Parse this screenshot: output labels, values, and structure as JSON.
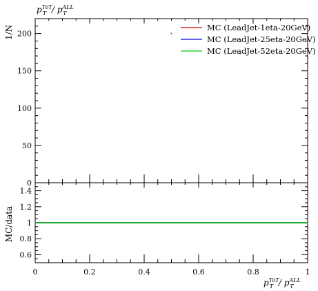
{
  "chart_data": [
    {
      "type": "scatter",
      "title": "p_T^ToT / p_T^ALL",
      "xlabel": "",
      "ylabel": "1/N",
      "xlim": [
        0,
        1
      ],
      "ylim": [
        0,
        220
      ],
      "yticks": [
        "0",
        "50",
        "100",
        "150",
        "200"
      ],
      "legend_position": "top-right",
      "series": [
        {
          "name": "MC (LeadJet-1eta-20GeV)",
          "color": "#cc0000",
          "x": [
            0.5
          ],
          "y": [
            200
          ]
        },
        {
          "name": "MC (LeadJet-25eta-20GeV)",
          "color": "#0000ee",
          "x": [
            0.5
          ],
          "y": [
            200
          ]
        },
        {
          "name": "MC (LeadJet-52eta-20GeV)",
          "color": "#00cc00",
          "x": [
            0.5
          ],
          "y": [
            200
          ]
        }
      ]
    },
    {
      "type": "line",
      "xlabel": "p_T^ToT / p_T^ALL",
      "ylabel": "MC/data",
      "xlim": [
        0,
        1
      ],
      "ylim": [
        0.5,
        1.5
      ],
      "xticks": [
        "0",
        "0.2",
        "0.4",
        "0.6",
        "0.8",
        "1"
      ],
      "yticks": [
        "0.6",
        "0.8",
        "1",
        "1.2",
        "1.4"
      ],
      "series": [
        {
          "name": "MC (LeadJet-1eta-20GeV)",
          "color": "#cc0000",
          "x": [
            0,
            1
          ],
          "y": [
            1,
            1
          ]
        },
        {
          "name": "MC (LeadJet-25eta-20GeV)",
          "color": "#0000ee",
          "x": [
            0,
            1
          ],
          "y": [
            1,
            1
          ]
        },
        {
          "name": "MC (LeadJet-52eta-20GeV)",
          "color": "#00cc00",
          "x": [
            0,
            1
          ],
          "y": [
            1,
            1
          ]
        }
      ]
    }
  ]
}
